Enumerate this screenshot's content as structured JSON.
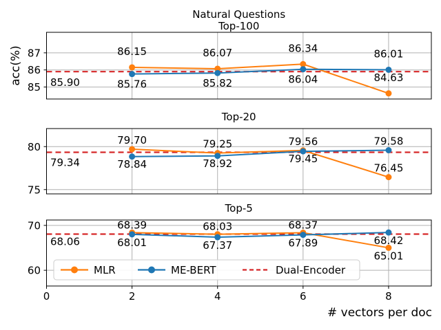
{
  "chart_data": {
    "type": "line",
    "title": "Natural Questions",
    "xlabel": "# vectors per doc",
    "ylabel": "acc(%)",
    "x": [
      2,
      4,
      6,
      8
    ],
    "xlim": [
      0,
      9
    ],
    "xticks": [
      0,
      2,
      4,
      6,
      8
    ],
    "grid": true,
    "colors": {
      "mlr": "#ff7f0e",
      "me_bert": "#1f77b4",
      "dual_encoder": "#d62728",
      "grid_line": "#b0b0b0",
      "frame": "#000000",
      "legend_border": "#cccccc",
      "text": "#000000"
    },
    "legend": {
      "position": "inside-bottom-subplot",
      "entries": [
        {
          "label": "MLR",
          "style": "line-marker",
          "color_key": "mlr"
        },
        {
          "label": "ME-BERT",
          "style": "line-marker",
          "color_key": "me_bert"
        },
        {
          "label": "Dual-Encoder",
          "style": "dashed-line",
          "color_key": "dual_encoder"
        }
      ]
    },
    "subplots": [
      {
        "title": "Top-100",
        "ylim": [
          84.3,
          88.2
        ],
        "yticks": [
          85,
          86,
          87
        ],
        "series": [
          {
            "name": "MLR",
            "color_key": "mlr",
            "values": [
              86.15,
              86.07,
              86.34,
              84.63
            ],
            "label_pos": [
              "above",
              "above",
              "above",
              "above"
            ]
          },
          {
            "name": "ME-BERT",
            "color_key": "me_bert",
            "values": [
              85.76,
              85.82,
              86.04,
              86.01
            ],
            "label_pos": [
              "below",
              "below",
              "below",
              "above"
            ]
          }
        ],
        "baseline": {
          "name": "Dual-Encoder",
          "value": 85.9,
          "label": "85.90"
        }
      },
      {
        "title": "Top-20",
        "ylim": [
          74.5,
          82.1
        ],
        "yticks": [
          75,
          80
        ],
        "series": [
          {
            "name": "MLR",
            "color_key": "mlr",
            "values": [
              79.7,
              79.25,
              79.56,
              76.45
            ],
            "label_pos": [
              "above",
              "above",
              "above",
              "above"
            ]
          },
          {
            "name": "ME-BERT",
            "color_key": "me_bert",
            "values": [
              78.84,
              78.92,
              79.45,
              79.58
            ],
            "label_pos": [
              "below",
              "below",
              "below",
              "above"
            ]
          }
        ],
        "baseline": {
          "name": "Dual-Encoder",
          "value": 79.34,
          "label": "79.34"
        }
      },
      {
        "title": "Top-5",
        "ylim": [
          56.5,
          71.2
        ],
        "yticks": [
          60,
          70
        ],
        "series": [
          {
            "name": "MLR",
            "color_key": "mlr",
            "values": [
              68.39,
              68.03,
              68.37,
              65.01
            ],
            "label_pos": [
              "above",
              "above",
              "above",
              "below"
            ]
          },
          {
            "name": "ME-BERT",
            "color_key": "me_bert",
            "values": [
              68.01,
              67.37,
              67.89,
              68.42
            ],
            "label_pos": [
              "below",
              "below",
              "below",
              "below"
            ]
          }
        ],
        "baseline": {
          "name": "Dual-Encoder",
          "value": 68.06,
          "label": "68.06"
        }
      }
    ]
  }
}
